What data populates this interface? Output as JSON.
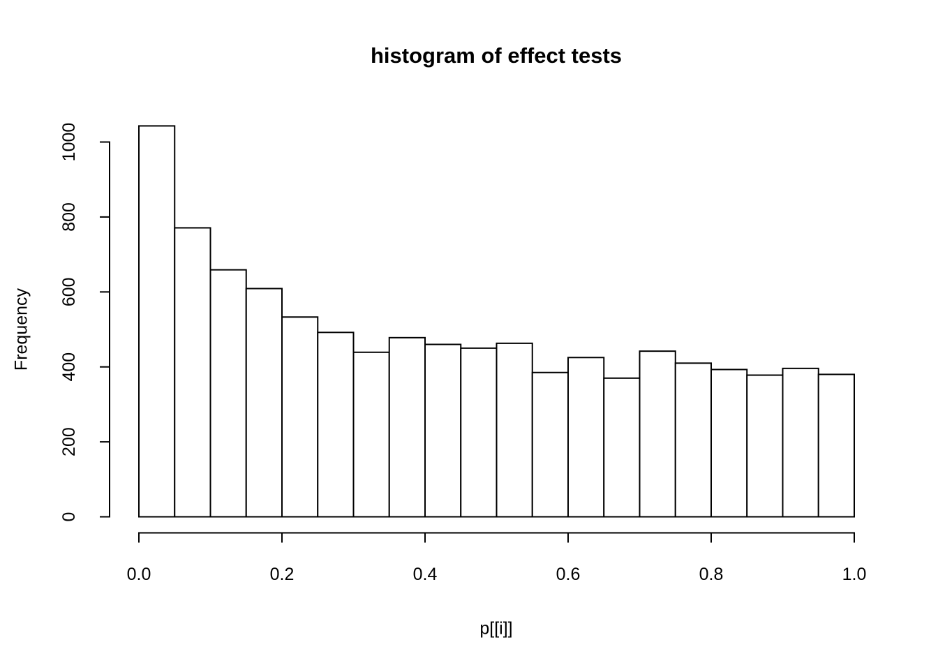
{
  "chart_data": {
    "type": "bar",
    "subtype": "histogram",
    "title": "histogram of effect tests",
    "xlabel": "p[[i]]",
    "ylabel": "Frequency",
    "bin_width": 0.05,
    "bin_edges": [
      0,
      0.05,
      0.1,
      0.15,
      0.2,
      0.25,
      0.3,
      0.35,
      0.4,
      0.45,
      0.5,
      0.55,
      0.6,
      0.65,
      0.7,
      0.75,
      0.8,
      0.85,
      0.9,
      0.95,
      1.0
    ],
    "values": [
      1043,
      771,
      659,
      609,
      533,
      492,
      439,
      478,
      460,
      450,
      463,
      385,
      425,
      370,
      442,
      410,
      393,
      378,
      396,
      380
    ],
    "x_tick_values": [
      0.0,
      0.2,
      0.4,
      0.6,
      0.8,
      1.0
    ],
    "x_tick_labels": [
      "0.0",
      "0.2",
      "0.4",
      "0.6",
      "0.8",
      "1.0"
    ],
    "y_tick_values": [
      0,
      200,
      400,
      600,
      800,
      1000
    ],
    "y_tick_labels": [
      "0",
      "200",
      "400",
      "600",
      "800",
      "1000"
    ],
    "xlim": [
      0,
      1
    ],
    "ylim": [
      0,
      1000
    ],
    "grid": false,
    "legend": null,
    "colors": {
      "background": "#ffffff",
      "bar_fill": "#ffffff",
      "stroke": "#000000",
      "text": "#000000"
    }
  }
}
